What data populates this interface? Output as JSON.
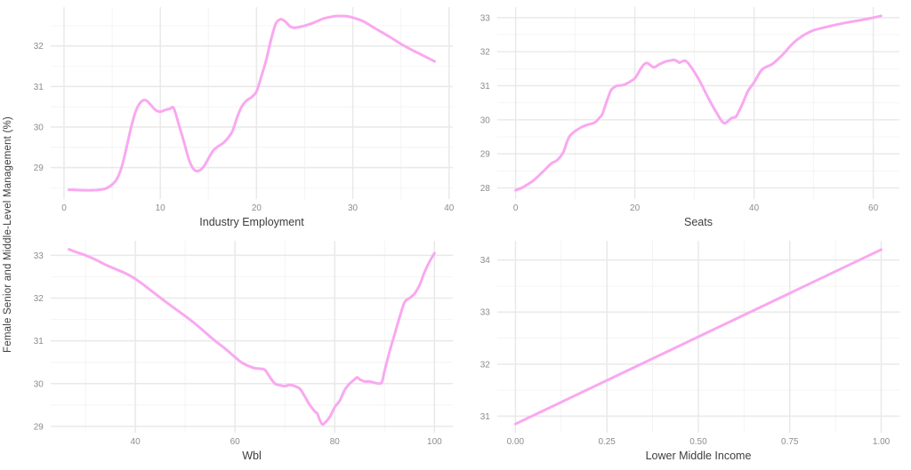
{
  "figure": {
    "shared_ylabel": "Female Senior and Middle-Level Management (%)",
    "background": "#ffffff",
    "line_color": "#f9a8f0",
    "grid_major_color": "#e9e9e9",
    "grid_minor_color": "#f4f4f4",
    "tick_label_color": "#8c8c8c",
    "axis_title_color": "#3d3d3d"
  },
  "chart_data": [
    {
      "type": "line",
      "xlabel": "Industry Employment",
      "xlim": [
        -1.4,
        40.4
      ],
      "ylim": [
        28.22,
        32.96
      ],
      "xticks": [
        0,
        10,
        20,
        30,
        40
      ],
      "xtick_labels": [
        "0",
        "10",
        "20",
        "30",
        "40"
      ],
      "xminor": [
        5,
        15,
        25,
        35
      ],
      "yticks": [
        29,
        30,
        31,
        32
      ],
      "ytick_labels": [
        "29",
        "30",
        "31",
        "32"
      ],
      "yminor": [
        28.5,
        29.5,
        30.5,
        31.5,
        32.5
      ],
      "x": [
        0.5,
        1,
        2,
        3,
        4,
        4.5,
        5,
        5.5,
        6,
        6.5,
        7,
        7.5,
        8,
        8.5,
        9,
        9.5,
        10,
        10.5,
        11,
        11.4,
        12,
        12.5,
        13,
        13.5,
        14,
        14.5,
        15,
        15.5,
        16,
        16.5,
        17,
        17.5,
        18,
        18.5,
        19,
        19.5,
        20,
        20.5,
        21,
        21.5,
        22,
        22.5,
        23,
        23.5,
        24,
        25,
        26,
        27,
        28,
        29,
        29.5,
        30,
        31,
        32,
        33,
        34,
        35,
        36,
        37,
        38,
        38.5
      ],
      "y": [
        28.45,
        28.45,
        28.44,
        28.44,
        28.46,
        28.5,
        28.58,
        28.72,
        29.02,
        29.5,
        30.02,
        30.42,
        30.62,
        30.66,
        30.55,
        30.42,
        30.38,
        30.42,
        30.45,
        30.46,
        30.0,
        29.6,
        29.18,
        28.95,
        28.92,
        29.02,
        29.22,
        29.42,
        29.52,
        29.6,
        29.72,
        29.9,
        30.25,
        30.52,
        30.66,
        30.74,
        30.88,
        31.25,
        31.65,
        32.15,
        32.55,
        32.66,
        32.6,
        32.48,
        32.45,
        32.5,
        32.58,
        32.68,
        32.73,
        32.74,
        32.73,
        32.7,
        32.62,
        32.48,
        32.34,
        32.2,
        32.05,
        31.92,
        31.8,
        31.68,
        31.62
      ]
    },
    {
      "type": "line",
      "xlabel": "Seats",
      "xlim": [
        -3.1,
        64.4
      ],
      "ylim": [
        27.67,
        33.31
      ],
      "xticks": [
        0,
        20,
        40,
        60
      ],
      "xtick_labels": [
        "0",
        "20",
        "40",
        "60"
      ],
      "xminor": [
        10,
        30,
        50
      ],
      "yticks": [
        28,
        29,
        30,
        31,
        32,
        33
      ],
      "ytick_labels": [
        "28",
        "29",
        "30",
        "31",
        "32",
        "33"
      ],
      "yminor": [
        28.5,
        29.5,
        30.5,
        31.5,
        32.5
      ],
      "x": [
        0,
        1,
        2,
        3,
        4,
        5,
        6,
        7,
        8,
        8.5,
        9,
        9.5,
        10,
        11,
        12,
        13,
        13.5,
        14,
        14.5,
        15,
        15.5,
        16,
        16.5,
        17,
        18,
        19,
        20,
        20.5,
        21,
        21.5,
        22,
        22.5,
        23,
        23.5,
        24,
        25,
        25.5,
        26,
        26.5,
        27,
        27.5,
        28,
        28.5,
        29,
        30,
        31,
        32,
        33,
        34,
        34.5,
        35,
        35.5,
        36,
        36.5,
        37,
        38,
        39,
        40,
        41,
        41.5,
        42,
        43,
        44,
        45,
        46,
        47,
        48,
        49,
        50,
        52,
        54,
        56,
        58,
        60,
        61.3
      ],
      "y": [
        27.93,
        28.0,
        28.1,
        28.22,
        28.38,
        28.55,
        28.72,
        28.82,
        29.05,
        29.3,
        29.5,
        29.6,
        29.67,
        29.78,
        29.85,
        29.9,
        29.95,
        30.05,
        30.15,
        30.4,
        30.65,
        30.87,
        30.95,
        31.0,
        31.02,
        31.1,
        31.22,
        31.35,
        31.5,
        31.62,
        31.67,
        31.62,
        31.55,
        31.56,
        31.62,
        31.7,
        31.73,
        31.74,
        31.76,
        31.73,
        31.68,
        31.72,
        31.73,
        31.65,
        31.4,
        31.1,
        30.75,
        30.42,
        30.12,
        29.98,
        29.9,
        29.94,
        30.02,
        30.07,
        30.1,
        30.45,
        30.85,
        31.1,
        31.4,
        31.5,
        31.55,
        31.63,
        31.78,
        31.95,
        32.15,
        32.32,
        32.45,
        32.55,
        32.63,
        32.72,
        32.8,
        32.87,
        32.93,
        33.0,
        33.05
      ]
    },
    {
      "type": "line",
      "xlabel": "Wbl",
      "xlim": [
        23.0,
        103.7
      ],
      "ylim": [
        28.85,
        33.34
      ],
      "xticks": [
        40,
        60,
        80,
        100
      ],
      "xtick_labels": [
        "40",
        "60",
        "80",
        "100"
      ],
      "xminor": [
        30,
        50,
        70,
        90
      ],
      "yticks": [
        29,
        30,
        31,
        32,
        33
      ],
      "ytick_labels": [
        "29",
        "30",
        "31",
        "32",
        "33"
      ],
      "yminor": [
        29.5,
        30.5,
        31.5,
        32.5
      ],
      "x": [
        26.7,
        28,
        30,
        32,
        34,
        36,
        38,
        40,
        42,
        44,
        46,
        48,
        50,
        52,
        54,
        56,
        58,
        60,
        61,
        62,
        63,
        64,
        65,
        66,
        67,
        68,
        69,
        70,
        71,
        72,
        73,
        74,
        75,
        76,
        76.5,
        77,
        77.5,
        78,
        79,
        80,
        81,
        82,
        83,
        84,
        84.5,
        85,
        86,
        87,
        88,
        89,
        89.5,
        90,
        91,
        92,
        93,
        94,
        95,
        96,
        97,
        98,
        99,
        100
      ],
      "y": [
        33.14,
        33.08,
        33.0,
        32.9,
        32.78,
        32.68,
        32.58,
        32.45,
        32.28,
        32.1,
        31.92,
        31.75,
        31.58,
        31.4,
        31.2,
        31.0,
        30.82,
        30.62,
        30.52,
        30.45,
        30.4,
        30.36,
        30.35,
        30.32,
        30.15,
        30.0,
        29.96,
        29.94,
        29.97,
        29.94,
        29.88,
        29.7,
        29.5,
        29.35,
        29.3,
        29.15,
        29.05,
        29.08,
        29.22,
        29.45,
        29.6,
        29.85,
        30.0,
        30.1,
        30.15,
        30.1,
        30.05,
        30.05,
        30.02,
        30.0,
        30.05,
        30.3,
        30.75,
        31.15,
        31.55,
        31.9,
        32.0,
        32.1,
        32.3,
        32.6,
        32.85,
        33.05
      ]
    },
    {
      "type": "line",
      "xlabel": "Lower Middle Income",
      "xlim": [
        -0.05,
        1.05
      ],
      "ylim": [
        30.68,
        34.37
      ],
      "xticks": [
        0,
        0.25,
        0.5,
        0.75,
        1
      ],
      "xtick_labels": [
        "0.00",
        "0.25",
        "0.50",
        "0.75",
        "1.00"
      ],
      "xminor": [
        0.125,
        0.375,
        0.625,
        0.875
      ],
      "yticks": [
        31,
        32,
        33,
        34
      ],
      "ytick_labels": [
        "31",
        "32",
        "33",
        "34"
      ],
      "yminor": [
        31.5,
        32.5,
        33.5
      ],
      "x": [
        0,
        1
      ],
      "y": [
        30.85,
        34.2
      ]
    }
  ]
}
